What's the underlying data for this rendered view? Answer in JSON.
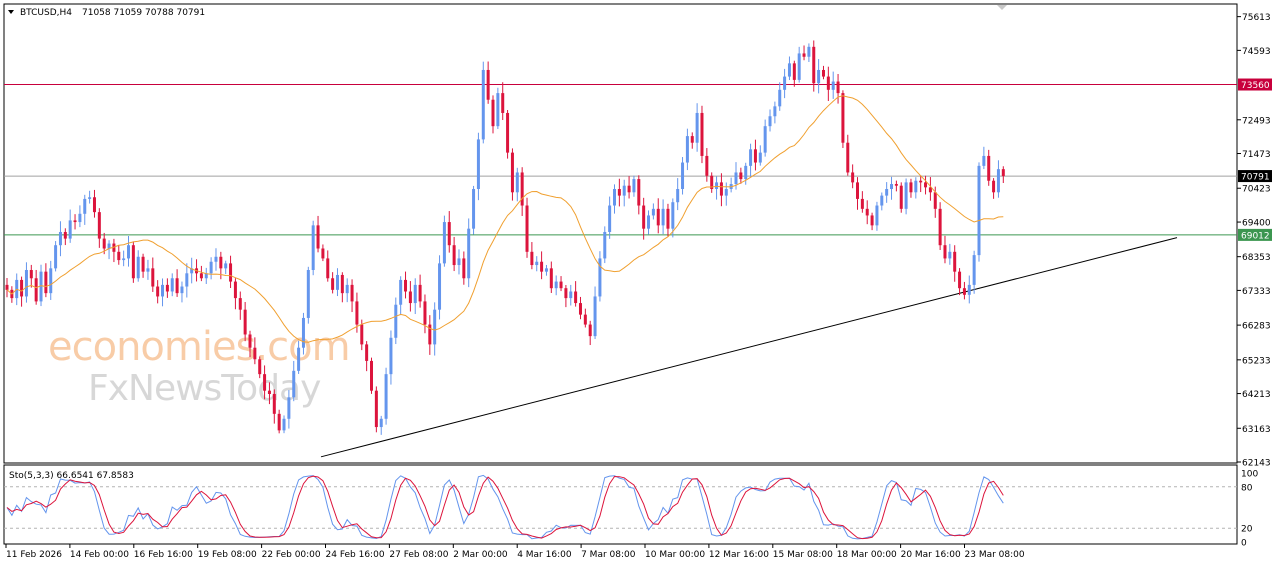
{
  "header": {
    "symbol": "BTCUSD,H4",
    "ohlc": "71058 71059 70788 70791"
  },
  "indicator": {
    "label": "Sto(5,3,3) 66.6541 67.8583",
    "levels": [
      "100",
      "80",
      "20",
      "0"
    ]
  },
  "watermark": {
    "line1": "economies.com",
    "line2": "FxNewsToday"
  },
  "colors": {
    "bull": "#6495ed",
    "bear": "#dc143c",
    "ma": "#f0a030",
    "resistance": "#c8003c",
    "support": "#3c9650",
    "current": "#a0a0a0",
    "trendline": "#000000",
    "stoch_main": "#6495ed",
    "stoch_signal": "#dc143c"
  },
  "chart_data": {
    "type": "candlestick",
    "ylim": [
      62143,
      75965
    ],
    "price_ticks": [
      "75613",
      "74593",
      "73560",
      "72493",
      "71473",
      "70791",
      "70423",
      "69400",
      "69012",
      "68353",
      "67333",
      "66283",
      "65233",
      "64213",
      "63163",
      "62143"
    ],
    "time_ticks": [
      "11 Feb 2026",
      "14 Feb 00:00",
      "16 Feb 16:00",
      "19 Feb 08:00",
      "22 Feb 00:00",
      "24 Feb 16:00",
      "27 Feb 08:00",
      "2 Mar 00:00",
      "4 Mar 16:00",
      "7 Mar 08:00",
      "10 Mar 00:00",
      "12 Mar 16:00",
      "15 Mar 08:00",
      "18 Mar 00:00",
      "20 Mar 16:00",
      "23 Mar 08:00"
    ],
    "horizontal_levels": [
      {
        "label": "73560",
        "value": 73560,
        "role": "resistance"
      },
      {
        "label": "70791",
        "value": 70791,
        "role": "current"
      },
      {
        "label": "69012",
        "value": 69012,
        "role": "support"
      }
    ],
    "trendline": [
      {
        "bar": 0,
        "value": 62300
      },
      {
        "bar": 1,
        "value": 68930
      }
    ],
    "closes": [
      67350,
      67100,
      67650,
      67150,
      67950,
      67700,
      67000,
      67900,
      67250,
      68000,
      68700,
      69100,
      68900,
      69450,
      69400,
      69650,
      70100,
      70150,
      69700,
      68900,
      68600,
      68750,
      68500,
      68250,
      68300,
      68700,
      67700,
      68350,
      67900,
      68000,
      67450,
      67150,
      67500,
      67300,
      67700,
      67250,
      67450,
      67850,
      68000,
      67850,
      67700,
      67850,
      68200,
      68350,
      68000,
      68150,
      67600,
      67100,
      66750,
      66000,
      65600,
      65250,
      64800,
      64300,
      64200,
      63600,
      63100,
      63450,
      64100,
      64900,
      65600,
      66500,
      67950,
      69300,
      68600,
      68300,
      67700,
      67350,
      67800,
      67250,
      67500,
      67000,
      66300,
      65700,
      65200,
      64300,
      63200,
      63450,
      64800,
      65900,
      66900,
      67650,
      67300,
      66950,
      67500,
      67000,
      66300,
      65700,
      66750,
      68150,
      69400,
      68700,
      68100,
      68300,
      67700,
      69200,
      70400,
      71900,
      74000,
      73100,
      72300,
      73300,
      72700,
      71500,
      70300,
      70900,
      69900,
      68500,
      68100,
      68200,
      67900,
      68000,
      67400,
      67600,
      67400,
      67100,
      67300,
      66950,
      66600,
      66300,
      65950,
      67150,
      68300,
      69100,
      69900,
      70400,
      70200,
      70500,
      70300,
      70700,
      69900,
      69200,
      69600,
      69800,
      69300,
      69800,
      69200,
      70000,
      70400,
      71200,
      72000,
      71800,
      72700,
      71400,
      70800,
      70400,
      70600,
      70200,
      70400,
      70550,
      70900,
      70700,
      71100,
      71600,
      71200,
      71500,
      72300,
      72600,
      72900,
      73400,
      73800,
      74200,
      73700,
      74500,
      74400,
      74700,
      73600,
      74000,
      73800,
      73400,
      73650,
      73300,
      71800,
      70900,
      70600,
      70100,
      69800,
      69600,
      69300,
      69900,
      70200,
      70400,
      70550,
      70500,
      69800,
      70600,
      70300,
      70650,
      70600,
      70450,
      70300,
      69800,
      68700,
      68300,
      68500,
      67900,
      67400,
      67200,
      67500,
      68400,
      71100,
      71400,
      70650,
      70300,
      71000,
      70791
    ]
  }
}
